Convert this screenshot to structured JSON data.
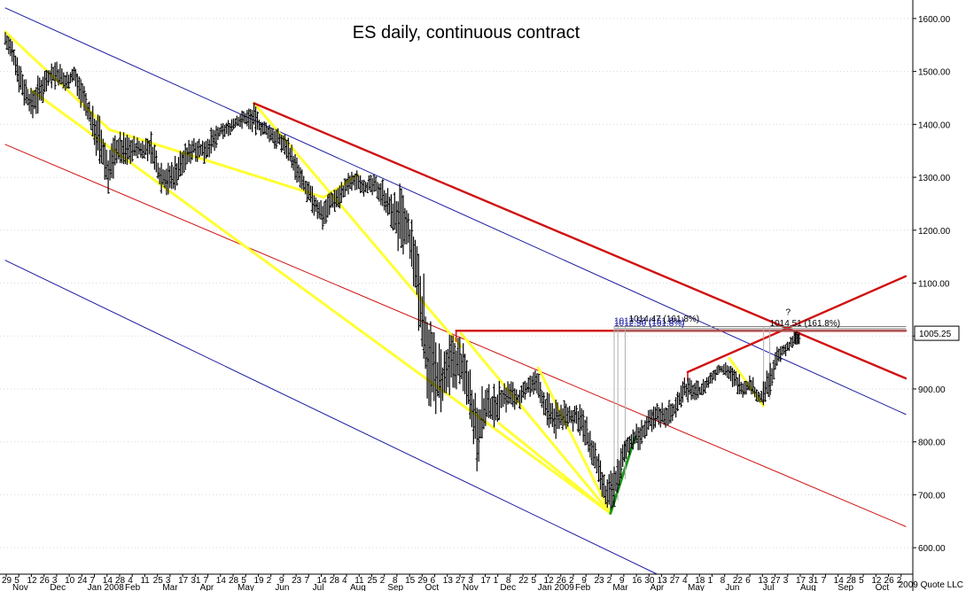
{
  "chart_data": {
    "type": "bar",
    "subtype": "ohlc",
    "title": "ES daily, continuous contract",
    "y_axis": {
      "position": "right",
      "range": [
        550,
        1635
      ],
      "ticks": [
        600,
        700,
        800,
        900,
        1000,
        1100,
        1200,
        1300,
        1400,
        1500,
        1600
      ],
      "tick_labels": [
        "600.00",
        "700.00",
        "800.00",
        "900.00",
        "",
        "1100.00",
        "1200.00",
        "1300.00",
        "1400.00",
        "1500.00",
        "1600.00"
      ]
    },
    "current_price": {
      "label": "1005.25",
      "value": 1005.25,
      "color": "#000000"
    },
    "x_axis": {
      "day_labels": [
        "29",
        "5",
        "12",
        "26",
        "3",
        "10",
        "24",
        "7",
        "14",
        "28",
        "4",
        "11",
        "25",
        "3",
        "17",
        "31",
        "7",
        "14",
        "28",
        "5",
        "19",
        "2",
        "9",
        "23",
        "7",
        "14",
        "28",
        "4",
        "11",
        "25",
        "2",
        "8",
        "15",
        "29",
        "6",
        "13",
        "27",
        "3",
        "17",
        "1",
        "8",
        "22",
        "5",
        "12",
        "26",
        "2",
        "9",
        "23",
        "2",
        "9",
        "16",
        "30",
        "13",
        "27",
        "4",
        "18",
        "1",
        "8",
        "22",
        "6",
        "13",
        "27",
        "3",
        "17",
        "31",
        "7",
        "14",
        "28",
        "5",
        "12",
        "26",
        "2"
      ],
      "month_labels": [
        "Nov",
        "Dec",
        "Jan 2008",
        "Feb",
        "Mar",
        "Apr",
        "May",
        "Jun",
        "Jul",
        "Aug",
        "Sep",
        "Oct",
        "Nov",
        "Dec",
        "Jan 2009",
        "Feb",
        "Mar",
        "Apr",
        "May",
        "Jun",
        "Jul",
        "Aug",
        "Sep",
        "Oct"
      ],
      "range": [
        "2007-10-29",
        "2009-11-02"
      ]
    },
    "series": [
      {
        "values": [
          {
            "date": "2007-10-29",
            "high": 1580,
            "low": 1545
          },
          {
            "date": "2007-11-05",
            "high": 1560,
            "low": 1490
          },
          {
            "date": "2007-11-12",
            "high": 1510,
            "low": 1440
          },
          {
            "date": "2007-11-19",
            "high": 1470,
            "low": 1405
          },
          {
            "date": "2007-11-26",
            "high": 1500,
            "low": 1420
          },
          {
            "date": "2007-12-03",
            "high": 1515,
            "low": 1470
          },
          {
            "date": "2007-12-10",
            "high": 1530,
            "low": 1460
          },
          {
            "date": "2007-12-17",
            "high": 1500,
            "low": 1460
          },
          {
            "date": "2007-12-24",
            "high": 1515,
            "low": 1475
          },
          {
            "date": "2007-12-31",
            "high": 1490,
            "low": 1420
          },
          {
            "date": "2008-01-07",
            "high": 1440,
            "low": 1380
          },
          {
            "date": "2008-01-14",
            "high": 1420,
            "low": 1310
          },
          {
            "date": "2008-01-21",
            "high": 1360,
            "low": 1260
          },
          {
            "date": "2008-01-28",
            "high": 1390,
            "low": 1320
          },
          {
            "date": "2008-02-04",
            "high": 1385,
            "low": 1315
          },
          {
            "date": "2008-02-11",
            "high": 1380,
            "low": 1330
          },
          {
            "date": "2008-02-18",
            "high": 1375,
            "low": 1330
          },
          {
            "date": "2008-02-25",
            "high": 1390,
            "low": 1320
          },
          {
            "date": "2008-03-03",
            "high": 1340,
            "low": 1270
          },
          {
            "date": "2008-03-10",
            "high": 1330,
            "low": 1260
          },
          {
            "date": "2008-03-17",
            "high": 1350,
            "low": 1270
          },
          {
            "date": "2008-03-24",
            "high": 1365,
            "low": 1310
          },
          {
            "date": "2008-03-31",
            "high": 1385,
            "low": 1330
          },
          {
            "date": "2008-04-07",
            "high": 1375,
            "low": 1325
          },
          {
            "date": "2008-04-14",
            "high": 1395,
            "low": 1330
          },
          {
            "date": "2008-04-21",
            "high": 1400,
            "low": 1370
          },
          {
            "date": "2008-04-28",
            "high": 1410,
            "low": 1375
          },
          {
            "date": "2008-05-05",
            "high": 1425,
            "low": 1385
          },
          {
            "date": "2008-05-12",
            "high": 1430,
            "low": 1395
          },
          {
            "date": "2008-05-19",
            "high": 1440,
            "low": 1380
          },
          {
            "date": "2008-05-26",
            "high": 1410,
            "low": 1375
          },
          {
            "date": "2008-06-02",
            "high": 1405,
            "low": 1355
          },
          {
            "date": "2008-06-09",
            "high": 1390,
            "low": 1350
          },
          {
            "date": "2008-06-16",
            "high": 1380,
            "low": 1330
          },
          {
            "date": "2008-06-23",
            "high": 1340,
            "low": 1280
          },
          {
            "date": "2008-06-30",
            "high": 1300,
            "low": 1260
          },
          {
            "date": "2008-07-07",
            "high": 1280,
            "low": 1220
          },
          {
            "date": "2008-07-14",
            "high": 1260,
            "low": 1200
          },
          {
            "date": "2008-07-21",
            "high": 1280,
            "low": 1230
          },
          {
            "date": "2008-07-28",
            "high": 1290,
            "low": 1240
          },
          {
            "date": "2008-08-04",
            "high": 1310,
            "low": 1265
          },
          {
            "date": "2008-08-11",
            "high": 1315,
            "low": 1275
          },
          {
            "date": "2008-08-18",
            "high": 1305,
            "low": 1260
          },
          {
            "date": "2008-08-25",
            "high": 1305,
            "low": 1265
          },
          {
            "date": "2008-09-01",
            "high": 1300,
            "low": 1240
          },
          {
            "date": "2008-09-08",
            "high": 1270,
            "low": 1200
          },
          {
            "date": "2008-09-15",
            "high": 1290,
            "low": 1140
          },
          {
            "date": "2008-09-22",
            "high": 1240,
            "low": 1150
          },
          {
            "date": "2008-09-29",
            "high": 1200,
            "low": 1020
          },
          {
            "date": "2008-10-06",
            "high": 1100,
            "low": 880
          },
          {
            "date": "2008-10-13",
            "high": 1010,
            "low": 840
          },
          {
            "date": "2008-10-20",
            "high": 980,
            "low": 840
          },
          {
            "date": "2008-10-27",
            "high": 1010,
            "low": 880
          },
          {
            "date": "2008-11-03",
            "high": 1005,
            "low": 900
          },
          {
            "date": "2008-11-10",
            "high": 960,
            "low": 860
          },
          {
            "date": "2008-11-17",
            "high": 900,
            "low": 740
          },
          {
            "date": "2008-11-24",
            "high": 910,
            "low": 820
          },
          {
            "date": "2008-12-01",
            "high": 910,
            "low": 820
          },
          {
            "date": "2008-12-08",
            "high": 920,
            "low": 850
          },
          {
            "date": "2008-12-15",
            "high": 920,
            "low": 860
          },
          {
            "date": "2008-12-22",
            "high": 900,
            "low": 860
          },
          {
            "date": "2008-12-29",
            "high": 935,
            "low": 880
          },
          {
            "date": "2009-01-05",
            "high": 940,
            "low": 880
          },
          {
            "date": "2009-01-12",
            "high": 900,
            "low": 830
          },
          {
            "date": "2009-01-19",
            "high": 880,
            "low": 800
          },
          {
            "date": "2009-01-26",
            "high": 880,
            "low": 820
          },
          {
            "date": "2009-02-02",
            "high": 875,
            "low": 820
          },
          {
            "date": "2009-02-09",
            "high": 880,
            "low": 810
          },
          {
            "date": "2009-02-16",
            "high": 840,
            "low": 760
          },
          {
            "date": "2009-02-23",
            "high": 790,
            "low": 720
          },
          {
            "date": "2009-03-02",
            "high": 730,
            "low": 665
          },
          {
            "date": "2009-03-09",
            "high": 760,
            "low": 670
          },
          {
            "date": "2009-03-16",
            "high": 800,
            "low": 740
          },
          {
            "date": "2009-03-23",
            "high": 830,
            "low": 780
          },
          {
            "date": "2009-03-30",
            "high": 840,
            "low": 780
          },
          {
            "date": "2009-04-06",
            "high": 860,
            "low": 810
          },
          {
            "date": "2009-04-13",
            "high": 875,
            "low": 830
          },
          {
            "date": "2009-04-20",
            "high": 880,
            "low": 820
          },
          {
            "date": "2009-04-27",
            "high": 880,
            "low": 840
          },
          {
            "date": "2009-05-04",
            "high": 930,
            "low": 870
          },
          {
            "date": "2009-05-11",
            "high": 920,
            "low": 875
          },
          {
            "date": "2009-05-18",
            "high": 915,
            "low": 880
          },
          {
            "date": "2009-05-25",
            "high": 930,
            "low": 895
          },
          {
            "date": "2009-06-01",
            "high": 950,
            "low": 920
          },
          {
            "date": "2009-06-08",
            "high": 955,
            "low": 925
          },
          {
            "date": "2009-06-15",
            "high": 940,
            "low": 895
          },
          {
            "date": "2009-06-22",
            "high": 925,
            "low": 880
          },
          {
            "date": "2009-06-29",
            "high": 930,
            "low": 885
          },
          {
            "date": "2009-07-06",
            "high": 895,
            "low": 865
          },
          {
            "date": "2009-07-13",
            "high": 945,
            "low": 870
          },
          {
            "date": "2009-07-20",
            "high": 980,
            "low": 940
          },
          {
            "date": "2009-07-27",
            "high": 990,
            "low": 960
          },
          {
            "date": "2009-08-03",
            "high": 1010,
            "low": 980
          }
        ]
      }
    ],
    "lines": [
      {
        "kind": "channel-upper",
        "color": "#1a1aa0",
        "points": [
          {
            "date": "2007-10-29",
            "y": 1620
          },
          {
            "date": "2009-11-02",
            "y": 852
          }
        ]
      },
      {
        "kind": "channel-mid",
        "color": "#d01010",
        "points": [
          {
            "date": "2007-10-29",
            "y": 1362
          },
          {
            "date": "2009-11-02",
            "y": 640
          }
        ]
      },
      {
        "kind": "channel-lower",
        "color": "#1a1aa0",
        "points": [
          {
            "date": "2007-10-29",
            "y": 1143
          },
          {
            "date": "2009-04-13",
            "y": 550
          }
        ]
      },
      {
        "kind": "yellow",
        "color": "#ffff33",
        "points": [
          {
            "date": "2007-10-29",
            "y": 1575
          },
          {
            "date": "2008-01-22",
            "y": 1390
          }
        ]
      },
      {
        "kind": "yellow",
        "color": "#ffff33",
        "points": [
          {
            "date": "2008-01-22",
            "y": 1390
          },
          {
            "date": "2008-07-15",
            "y": 1262
          }
        ]
      },
      {
        "kind": "yellow",
        "color": "#ffff33",
        "points": [
          {
            "date": "2007-11-19",
            "y": 1465
          },
          {
            "date": "2009-03-06",
            "y": 665
          }
        ]
      },
      {
        "kind": "yellow",
        "color": "#ffff33",
        "points": [
          {
            "date": "2008-05-19",
            "y": 1440
          },
          {
            "date": "2008-11-04",
            "y": 980
          }
        ]
      },
      {
        "kind": "yellow",
        "color": "#ffff33",
        "points": [
          {
            "date": "2008-07-15",
            "y": 1262
          },
          {
            "date": "2008-08-12",
            "y": 1305
          }
        ]
      },
      {
        "kind": "yellow",
        "color": "#ffff33",
        "points": [
          {
            "date": "2008-11-04",
            "y": 1005
          },
          {
            "date": "2009-03-06",
            "y": 665
          }
        ]
      },
      {
        "kind": "yellow",
        "color": "#ffff33",
        "points": [
          {
            "date": "2009-03-06",
            "y": 665
          },
          {
            "date": "2009-01-06",
            "y": 940
          }
        ]
      },
      {
        "kind": "yellow",
        "color": "#ffff33",
        "points": [
          {
            "date": "2009-03-06",
            "y": 665
          },
          {
            "date": "2008-12-05",
            "y": 835
          }
        ]
      },
      {
        "kind": "yellow",
        "color": "#ffff33",
        "points": [
          {
            "date": "2009-06-11",
            "y": 958
          },
          {
            "date": "2009-07-09",
            "y": 868
          }
        ]
      },
      {
        "kind": "green",
        "color": "#1a9a1a",
        "points": [
          {
            "date": "2009-03-06",
            "y": 665
          },
          {
            "date": "2009-03-26",
            "y": 808
          }
        ]
      },
      {
        "kind": "red-thick",
        "color": "#d01010",
        "points": [
          {
            "date": "2008-05-19",
            "y": 1440
          },
          {
            "date": "2009-11-02",
            "y": 920
          }
        ]
      },
      {
        "kind": "red-thick",
        "color": "#d01010",
        "points": [
          {
            "date": "2009-05-08",
            "y": 932
          },
          {
            "date": "2009-11-02",
            "y": 1113
          }
        ]
      },
      {
        "kind": "red-thick",
        "color": "#d01010",
        "points": [
          {
            "date": "2008-10-31",
            "y": 1010
          },
          {
            "date": "2009-11-02",
            "y": 1010
          }
        ]
      },
      {
        "kind": "red-tick",
        "color": "#d01010",
        "points": [
          {
            "date": "2008-10-31",
            "y": 1010
          },
          {
            "date": "2008-10-31",
            "y": 990
          }
        ]
      },
      {
        "kind": "red-tick",
        "color": "#d01010",
        "points": [
          {
            "date": "2009-05-08",
            "y": 932
          },
          {
            "date": "2009-05-08",
            "y": 915
          }
        ]
      },
      {
        "kind": "fib-level",
        "color": "#808080",
        "points": [
          {
            "date": "2009-03-09",
            "y": 1018
          },
          {
            "date": "2009-11-02",
            "y": 1018
          }
        ]
      },
      {
        "kind": "fib-level",
        "color": "#808080",
        "points": [
          {
            "date": "2009-03-09",
            "y": 1014
          },
          {
            "date": "2009-11-02",
            "y": 1014
          }
        ]
      },
      {
        "kind": "fib-level",
        "color": "#808080",
        "points": [
          {
            "date": "2009-03-09",
            "y": 1010
          },
          {
            "date": "2009-11-02",
            "y": 1010
          }
        ]
      },
      {
        "kind": "fib-vertical",
        "color": "#b0b0b0",
        "points": [
          {
            "date": "2009-03-09",
            "y": 1018
          },
          {
            "date": "2009-03-09",
            "y": 680
          }
        ]
      },
      {
        "kind": "fib-vertical",
        "color": "#b0b0b0",
        "points": [
          {
            "date": "2009-03-12",
            "y": 1018
          },
          {
            "date": "2009-03-12",
            "y": 690
          }
        ]
      },
      {
        "kind": "fib-vertical",
        "color": "#b0b0b0",
        "points": [
          {
            "date": "2009-03-18",
            "y": 1018
          },
          {
            "date": "2009-03-18",
            "y": 730
          }
        ]
      },
      {
        "kind": "fib-vertical",
        "color": "#b0b0b0",
        "points": [
          {
            "date": "2009-07-09",
            "y": 1018
          },
          {
            "date": "2009-07-09",
            "y": 875
          }
        ]
      },
      {
        "kind": "fib-vertical",
        "color": "#b0b0b0",
        "points": [
          {
            "date": "2009-07-14",
            "y": 1018
          },
          {
            "date": "2009-07-14",
            "y": 880
          }
        ]
      }
    ],
    "annotations": [
      {
        "text": "1014.51 (161.8%)",
        "date": "2009-07-14",
        "y": 1019,
        "color": "#000000"
      },
      {
        "text": "1012.50 (161.8%)",
        "date": "2009-03-09",
        "y": 1019,
        "color": "#1a1aa0"
      },
      {
        "text": "1012.53 (161.8%)",
        "date": "2009-03-09",
        "y": 1023,
        "color": "#1a1aa0"
      },
      {
        "text": "1014.47 (161.8%)",
        "date": "2009-03-21",
        "y": 1027,
        "color": "#000000"
      },
      {
        "text": "?",
        "date": "2009-07-27",
        "y": 1040,
        "color": "#000000",
        "size": 18
      }
    ],
    "grid": true,
    "credit": "2009 Quote LLC"
  }
}
